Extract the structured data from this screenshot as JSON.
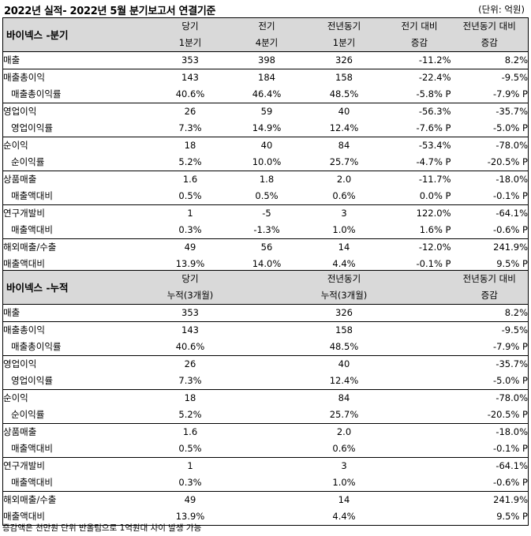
{
  "title": "2022년 실적- 2022년 5월 분기보고서 연결기준",
  "unit": "(단위: 억원)",
  "quarter": {
    "label": "바이넥스 -분기",
    "headers": [
      [
        "당기",
        "1분기"
      ],
      [
        "전기",
        "4분기"
      ],
      [
        "전년동기",
        "1분기"
      ],
      [
        "전기 대비",
        "증감"
      ],
      [
        "전년동기 대비",
        "증감"
      ]
    ],
    "rows": [
      {
        "label": "매출",
        "sub": false,
        "values": [
          "353",
          "398",
          "326",
          "-11.2%",
          "8.2%"
        ],
        "first": true
      },
      {
        "label": "매출총이익",
        "sub": false,
        "values": [
          "143",
          "184",
          "158",
          "-22.4%",
          "-9.5%"
        ],
        "first": true
      },
      {
        "label": "매출총이익률",
        "sub": true,
        "values": [
          "40.6%",
          "46.4%",
          "48.5%",
          "-5.8% P",
          "-7.9% P"
        ],
        "first": false
      },
      {
        "label": "영업이익",
        "sub": false,
        "values": [
          "26",
          "59",
          "40",
          "-56.3%",
          "-35.7%"
        ],
        "first": true
      },
      {
        "label": "영업이익률",
        "sub": true,
        "values": [
          "7.3%",
          "14.9%",
          "12.4%",
          "-7.6% P",
          "-5.0% P"
        ],
        "first": false
      },
      {
        "label": "순이익",
        "sub": false,
        "values": [
          "18",
          "40",
          "84",
          "-53.4%",
          "-78.0%"
        ],
        "first": true
      },
      {
        "label": "순이익률",
        "sub": true,
        "values": [
          "5.2%",
          "10.0%",
          "25.7%",
          "-4.7% P",
          "-20.5% P"
        ],
        "first": false
      },
      {
        "label": "상품매출",
        "sub": false,
        "values": [
          "1.6",
          "1.8",
          "2.0",
          "-11.7%",
          "-18.0%"
        ],
        "first": true
      },
      {
        "label": "매출액대비",
        "sub": true,
        "values": [
          "0.5%",
          "0.5%",
          "0.6%",
          "0.0% P",
          "-0.1% P"
        ],
        "first": false
      },
      {
        "label": "연구개발비",
        "sub": false,
        "values": [
          "1",
          "-5",
          "3",
          "122.0%",
          "-64.1%"
        ],
        "first": true
      },
      {
        "label": "매출액대비",
        "sub": true,
        "values": [
          "0.3%",
          "-1.3%",
          "1.0%",
          "1.6% P",
          "-0.6% P"
        ],
        "first": false
      },
      {
        "label": "해외매출/수출",
        "sub": false,
        "values": [
          "49",
          "56",
          "14",
          "-12.0%",
          "241.9%"
        ],
        "first": true
      },
      {
        "label": "매출액대비",
        "sub": false,
        "values": [
          "13.9%",
          "14.0%",
          "4.4%",
          "-0.1% P",
          "9.5% P"
        ],
        "first": false
      }
    ]
  },
  "cumulative": {
    "label": "바이넥스 -누적",
    "headers": [
      [
        "당기",
        "누적(3개월)"
      ],
      [
        "전년동기",
        "누적(3개월)"
      ],
      [
        "전년동기 대비",
        "증감"
      ]
    ],
    "rows": [
      {
        "label": "매출",
        "sub": false,
        "values": [
          "353",
          "326",
          "8.2%"
        ],
        "first": true
      },
      {
        "label": "매출총이익",
        "sub": false,
        "values": [
          "143",
          "158",
          "-9.5%"
        ],
        "first": true
      },
      {
        "label": "매출총이익률",
        "sub": true,
        "values": [
          "40.6%",
          "48.5%",
          "-7.9% P"
        ],
        "first": false
      },
      {
        "label": "영업이익",
        "sub": false,
        "values": [
          "26",
          "40",
          "-35.7%"
        ],
        "first": true
      },
      {
        "label": "영업이익률",
        "sub": true,
        "values": [
          "7.3%",
          "12.4%",
          "-5.0% P"
        ],
        "first": false
      },
      {
        "label": "순이익",
        "sub": false,
        "values": [
          "18",
          "84",
          "-78.0%"
        ],
        "first": true
      },
      {
        "label": "순이익률",
        "sub": true,
        "values": [
          "5.2%",
          "25.7%",
          "-20.5% P"
        ],
        "first": false
      },
      {
        "label": "상품매출",
        "sub": false,
        "values": [
          "1.6",
          "2.0",
          "-18.0%"
        ],
        "first": true
      },
      {
        "label": "매출액대비",
        "sub": true,
        "values": [
          "0.5%",
          "0.6%",
          "-0.1% P"
        ],
        "first": false
      },
      {
        "label": "연구개발비",
        "sub": false,
        "values": [
          "1",
          "3",
          "-64.1%"
        ],
        "first": true
      },
      {
        "label": "매출액대비",
        "sub": true,
        "values": [
          "0.3%",
          "1.0%",
          "-0.6% P"
        ],
        "first": false
      },
      {
        "label": "해외매출/수출",
        "sub": false,
        "values": [
          "49",
          "14",
          "241.9%"
        ],
        "first": true
      },
      {
        "label": "매출액대비",
        "sub": false,
        "values": [
          "13.9%",
          "4.4%",
          "9.5% P"
        ],
        "first": false
      }
    ]
  },
  "footer": "증감액은 천만원 단위 반올림으로 1억원대 차이 발생 가능"
}
